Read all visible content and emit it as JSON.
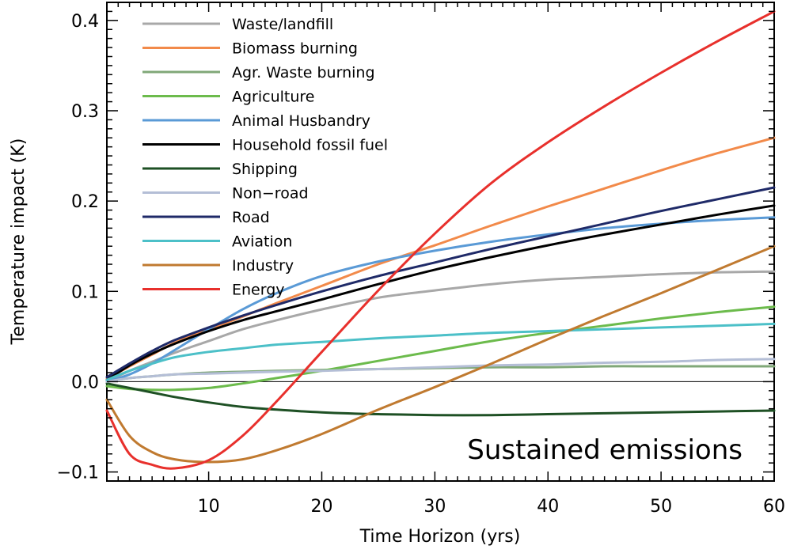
{
  "chart_data": {
    "type": "line",
    "title": "",
    "xlabel": "Time Horizon (yrs)",
    "ylabel": "Temperature impact (K)",
    "xlim": [
      1,
      60
    ],
    "ylim": [
      -0.11,
      0.42
    ],
    "xticks": [
      10,
      20,
      30,
      40,
      50,
      60
    ],
    "xtick_labels": [
      "10",
      "20",
      "30",
      "40",
      "50",
      "60"
    ],
    "yticks": [
      -0.1,
      0.0,
      0.1,
      0.2,
      0.3,
      0.4
    ],
    "ytick_labels": [
      "−0.1",
      "0.0",
      "0.1",
      "0.2",
      "0.3",
      "0.4"
    ],
    "zero_line": true,
    "grid": false,
    "legend_position": "top-left",
    "annotation": "Sustained emissions",
    "x": [
      1,
      3,
      5,
      7,
      10,
      13,
      16,
      20,
      25,
      30,
      35,
      40,
      45,
      50,
      55,
      60
    ],
    "series": [
      {
        "name": "Waste/landfill",
        "color": "#a8a8a8",
        "values": [
          0.0,
          0.012,
          0.022,
          0.032,
          0.045,
          0.058,
          0.068,
          0.08,
          0.093,
          0.101,
          0.108,
          0.113,
          0.116,
          0.119,
          0.121,
          0.122
        ]
      },
      {
        "name": "Biomass burning",
        "color": "#f28a4a",
        "values": [
          0.003,
          0.017,
          0.03,
          0.043,
          0.058,
          0.072,
          0.087,
          0.106,
          0.13,
          0.151,
          0.173,
          0.194,
          0.214,
          0.234,
          0.253,
          0.27
        ]
      },
      {
        "name": "Agr. Waste burning",
        "color": "#80a878",
        "values": [
          0.0,
          0.004,
          0.006,
          0.008,
          0.01,
          0.011,
          0.012,
          0.013,
          0.014,
          0.015,
          0.016,
          0.016,
          0.017,
          0.017,
          0.017,
          0.017
        ]
      },
      {
        "name": "Agriculture",
        "color": "#6cbb4c",
        "values": [
          -0.005,
          -0.008,
          -0.009,
          -0.009,
          -0.007,
          -0.002,
          0.004,
          0.012,
          0.023,
          0.034,
          0.045,
          0.054,
          0.062,
          0.07,
          0.077,
          0.083
        ]
      },
      {
        "name": "Animal Husbandry",
        "color": "#5a9ad6",
        "values": [
          0.0,
          0.008,
          0.02,
          0.035,
          0.058,
          0.08,
          0.098,
          0.117,
          0.133,
          0.145,
          0.155,
          0.163,
          0.17,
          0.175,
          0.179,
          0.182
        ]
      },
      {
        "name": "Household fossil fuel",
        "color": "#000000",
        "values": [
          0.002,
          0.018,
          0.031,
          0.042,
          0.056,
          0.068,
          0.078,
          0.091,
          0.108,
          0.124,
          0.138,
          0.151,
          0.163,
          0.174,
          0.185,
          0.195
        ]
      },
      {
        "name": "Shipping",
        "color": "#1e5024",
        "values": [
          -0.002,
          -0.007,
          -0.012,
          -0.017,
          -0.023,
          -0.028,
          -0.031,
          -0.034,
          -0.036,
          -0.037,
          -0.037,
          -0.036,
          -0.035,
          -0.034,
          -0.033,
          -0.032
        ]
      },
      {
        "name": "Non−road",
        "color": "#b4bed6",
        "values": [
          0.0,
          0.004,
          0.006,
          0.008,
          0.009,
          0.01,
          0.011,
          0.012,
          0.014,
          0.016,
          0.018,
          0.019,
          0.021,
          0.022,
          0.024,
          0.025
        ]
      },
      {
        "name": "Road",
        "color": "#1f2a68",
        "values": [
          0.005,
          0.02,
          0.034,
          0.046,
          0.06,
          0.073,
          0.085,
          0.1,
          0.117,
          0.132,
          0.147,
          0.161,
          0.175,
          0.189,
          0.202,
          0.215
        ]
      },
      {
        "name": "Aviation",
        "color": "#4cc0c8",
        "values": [
          0.002,
          0.012,
          0.02,
          0.027,
          0.033,
          0.037,
          0.041,
          0.044,
          0.048,
          0.051,
          0.054,
          0.056,
          0.058,
          0.06,
          0.062,
          0.064
        ]
      },
      {
        "name": "Industry",
        "color": "#c07a30",
        "values": [
          -0.02,
          -0.06,
          -0.078,
          -0.086,
          -0.089,
          -0.086,
          -0.076,
          -0.058,
          -0.031,
          -0.006,
          0.02,
          0.047,
          0.073,
          0.098,
          0.124,
          0.15
        ]
      },
      {
        "name": "Energy",
        "color": "#e8302c",
        "values": [
          -0.032,
          -0.08,
          -0.092,
          -0.096,
          -0.087,
          -0.06,
          -0.022,
          0.033,
          0.101,
          0.164,
          0.22,
          0.265,
          0.305,
          0.342,
          0.377,
          0.41
        ]
      }
    ]
  }
}
